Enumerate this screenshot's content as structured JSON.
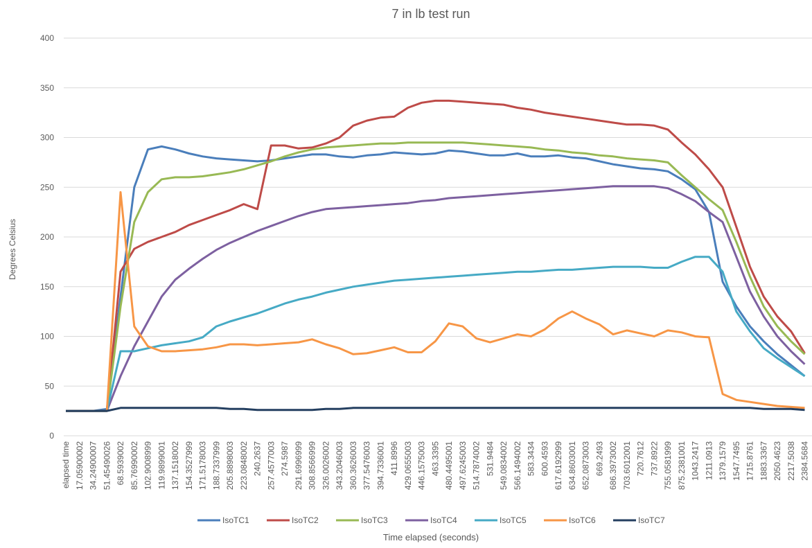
{
  "chart_data": {
    "type": "line",
    "title": "7 in lb test run",
    "x_label": "Time elapsed (seconds)",
    "y_label": "Degrees Celsius",
    "categories": [
      "elapsed time",
      "17.05900002",
      "34.24900007",
      "51.45490026",
      "68.5939002",
      "85.76990002",
      "102.9008999",
      "119.9899001",
      "137.1518002",
      "154.3527999",
      "171.5178003",
      "188.7337999",
      "205.8898003",
      "223.0848002",
      "240.2637",
      "257.4577003",
      "274.5987",
      "291.6996999",
      "308.8566999",
      "326.0026002",
      "343.2046003",
      "360.3626003",
      "377.5476003",
      "394.7336001",
      "411.8996",
      "429.0655003",
      "446.1575003",
      "463.3395",
      "480.4495001",
      "497.6245003",
      "514.7874002",
      "531.9484",
      "549.0834002",
      "566.1494002",
      "583.3434",
      "600.4593",
      "617.6192999",
      "634.8603001",
      "652.0873003",
      "669.2493",
      "686.3973002",
      "703.6012001",
      "720.7612",
      "737.8922",
      "755.0581999",
      "875.2381001",
      "1043.2417",
      "1211.0913",
      "1379.1579",
      "1547.7495",
      "1715.8761",
      "1883.3367",
      "2050.4623",
      "2217.5038",
      "2384.5684"
    ],
    "ylim": [
      0,
      400
    ],
    "yticks": [
      0,
      50,
      100,
      150,
      200,
      250,
      300,
      350,
      400
    ],
    "grid": true,
    "legend": "bottom",
    "series": [
      {
        "name": "IsoTC1",
        "color": "#4a7ebb",
        "values": [
          25,
          25,
          25,
          27,
          140,
          250,
          288,
          291,
          288,
          284,
          281,
          279,
          278,
          277,
          276,
          277,
          279,
          281,
          283,
          283,
          281,
          280,
          282,
          283,
          285,
          284,
          283,
          284,
          287,
          286,
          284,
          282,
          282,
          284,
          281,
          281,
          282,
          280,
          279,
          276,
          273,
          271,
          269,
          268,
          266,
          258,
          248,
          225,
          155,
          130,
          110,
          95,
          82,
          71,
          60
        ]
      },
      {
        "name": "IsoTC2",
        "color": "#be4b48",
        "values": [
          25,
          25,
          25,
          25,
          165,
          188,
          195,
          200,
          205,
          212,
          217,
          222,
          227,
          233,
          228,
          292,
          292,
          289,
          290,
          294,
          300,
          312,
          317,
          320,
          321,
          330,
          335,
          337,
          337,
          336,
          335,
          334,
          333,
          330,
          328,
          325,
          323,
          321,
          319,
          317,
          315,
          313,
          313,
          312,
          308,
          295,
          283,
          268,
          250,
          210,
          170,
          140,
          120,
          105,
          83
        ]
      },
      {
        "name": "IsoTC3",
        "color": "#98b954",
        "values": [
          25,
          25,
          25,
          25,
          130,
          215,
          245,
          258,
          260,
          260,
          261,
          263,
          265,
          268,
          272,
          276,
          281,
          285,
          288,
          290,
          291,
          292,
          293,
          294,
          294,
          295,
          295,
          295,
          295,
          295,
          294,
          293,
          292,
          291,
          290,
          288,
          287,
          285,
          284,
          282,
          281,
          279,
          278,
          277,
          275,
          262,
          250,
          238,
          227,
          195,
          160,
          130,
          110,
          95,
          82
        ]
      },
      {
        "name": "IsoTC4",
        "color": "#7d60a0",
        "values": [
          25,
          25,
          25,
          25,
          60,
          90,
          115,
          140,
          157,
          168,
          178,
          187,
          194,
          200,
          206,
          211,
          216,
          221,
          225,
          228,
          229,
          230,
          231,
          232,
          233,
          234,
          236,
          237,
          239,
          240,
          241,
          242,
          243,
          244,
          245,
          246,
          247,
          248,
          249,
          250,
          251,
          251,
          251,
          251,
          249,
          243,
          236,
          225,
          215,
          180,
          145,
          120,
          100,
          85,
          72
        ]
      },
      {
        "name": "IsoTC5",
        "color": "#46aac5",
        "values": [
          25,
          25,
          25,
          25,
          85,
          85,
          88,
          91,
          93,
          95,
          99,
          110,
          115,
          119,
          123,
          128,
          133,
          137,
          140,
          144,
          147,
          150,
          152,
          154,
          156,
          157,
          158,
          159,
          160,
          161,
          162,
          163,
          164,
          165,
          165,
          166,
          167,
          167,
          168,
          169,
          170,
          170,
          170,
          169,
          169,
          175,
          180,
          180,
          165,
          125,
          105,
          88,
          78,
          69,
          60
        ]
      },
      {
        "name": "IsoTC6",
        "color": "#f79646",
        "values": [
          25,
          25,
          25,
          25,
          245,
          110,
          90,
          85,
          85,
          86,
          87,
          89,
          92,
          92,
          91,
          92,
          93,
          94,
          97,
          92,
          88,
          82,
          83,
          86,
          89,
          84,
          84,
          95,
          113,
          110,
          98,
          94,
          98,
          102,
          100,
          107,
          118,
          125,
          118,
          112,
          102,
          106,
          103,
          100,
          106,
          104,
          100,
          99,
          42,
          36,
          34,
          32,
          30,
          29,
          28
        ]
      },
      {
        "name": "IsoTC7",
        "color": "#243f60",
        "values": [
          25,
          25,
          25,
          25,
          28,
          28,
          28,
          28,
          28,
          28,
          28,
          28,
          27,
          27,
          26,
          26,
          26,
          26,
          26,
          27,
          27,
          28,
          28,
          28,
          28,
          28,
          28,
          28,
          28,
          28,
          28,
          28,
          28,
          28,
          28,
          28,
          28,
          28,
          28,
          28,
          28,
          28,
          28,
          28,
          28,
          28,
          28,
          28,
          28,
          28,
          28,
          27,
          27,
          27,
          26
        ]
      }
    ]
  }
}
